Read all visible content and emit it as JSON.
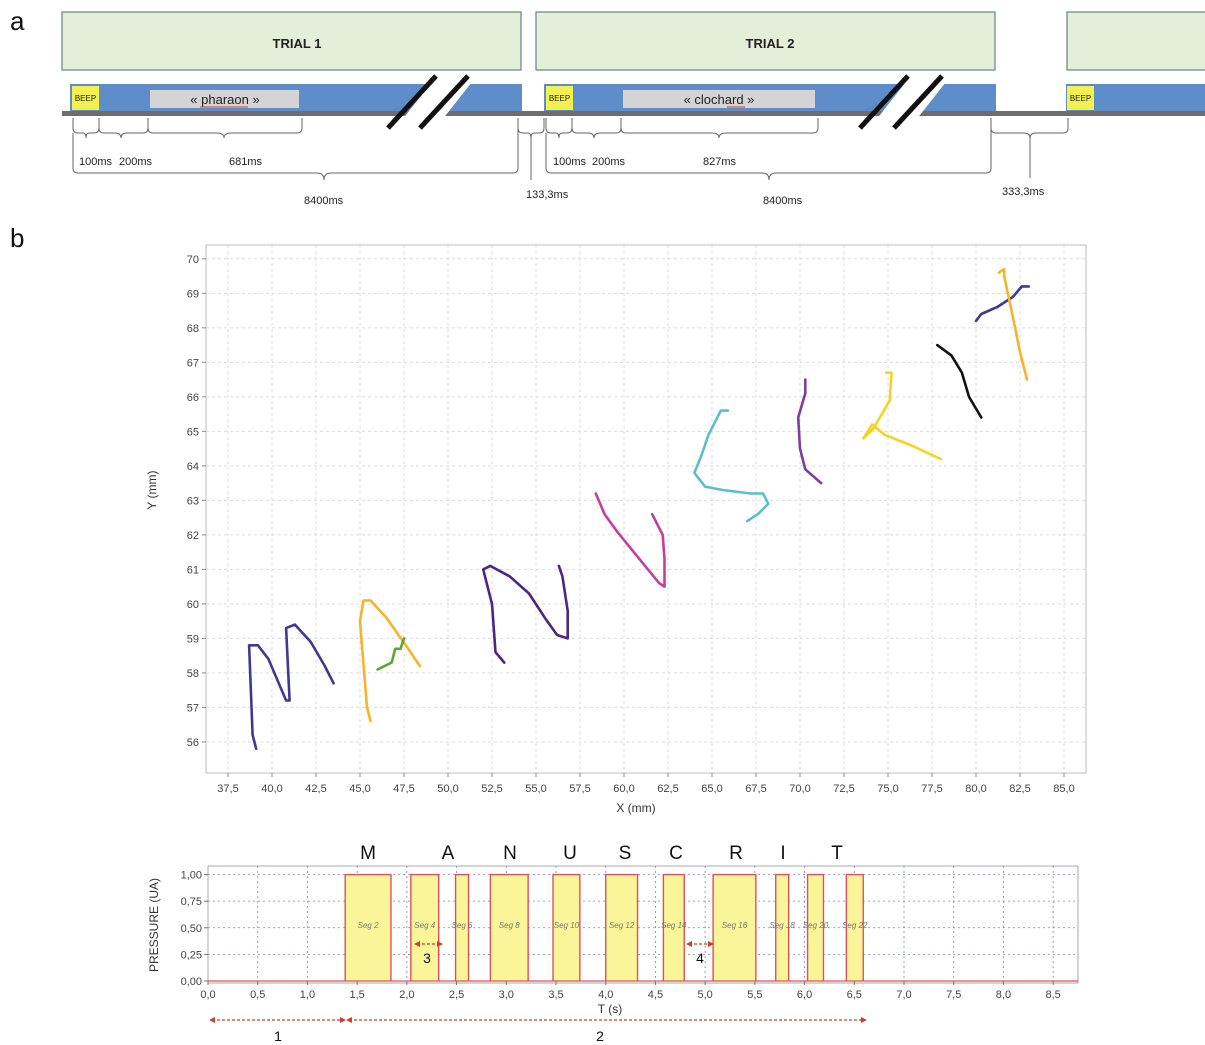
{
  "panel_a": {
    "label": "a",
    "trials": [
      {
        "title": "TRIAL 1",
        "beep": "BEEP",
        "word": "« pharaon »",
        "word_underline": "pharaon",
        "durations": [
          "100ms",
          "200ms",
          "681ms"
        ],
        "total": "8400ms"
      },
      {
        "title": "TRIAL 2",
        "beep": "BEEP",
        "word": "« clochard »",
        "word_underline": "clochard",
        "durations": [
          "100ms",
          "200ms",
          "827ms"
        ],
        "total": "8400ms"
      }
    ],
    "next_beep": "BEEP",
    "gaps": [
      "133,3ms",
      "333,3ms"
    ],
    "colors": {
      "trial_box": "#e3efd8",
      "bar": "#5e8dc9",
      "beep": "#f3f050",
      "word_box": "#d4d4d4",
      "timeline": "#6d6d6d"
    }
  },
  "panel_b": {
    "label": "b",
    "trajectory_chart": {
      "type": "line",
      "xlabel": "X (mm)",
      "ylabel": "Y (mm)",
      "xlim": [
        37.5,
        85.0
      ],
      "ylim": [
        56,
        70
      ],
      "x_ticks": [
        "37,5",
        "40,0",
        "42,5",
        "45,0",
        "47,5",
        "50,0",
        "52,5",
        "55,0",
        "57,5",
        "60,0",
        "62,5",
        "65,0",
        "67,5",
        "70,0",
        "72,5",
        "75,0",
        "77,5",
        "80,0",
        "82,5",
        "85,0"
      ],
      "y_ticks": [
        "56",
        "57",
        "58",
        "59",
        "60",
        "61",
        "62",
        "63",
        "64",
        "65",
        "66",
        "67",
        "68",
        "69",
        "70"
      ],
      "grid": true,
      "series": [
        {
          "color": "#3d3a8f",
          "points": [
            [
              39.1,
              55.8
            ],
            [
              38.9,
              56.2
            ],
            [
              38.7,
              58.8
            ],
            [
              39.2,
              58.8
            ],
            [
              39.8,
              58.4
            ],
            [
              40.8,
              57.2
            ],
            [
              41.0,
              57.2
            ],
            [
              40.8,
              59.3
            ],
            [
              41.3,
              59.4
            ],
            [
              42.2,
              58.9
            ],
            [
              43.0,
              58.2
            ],
            [
              43.5,
              57.7
            ]
          ]
        },
        {
          "color": "#f5b429",
          "points": [
            [
              45.6,
              56.6
            ],
            [
              45.4,
              57.0
            ],
            [
              45.0,
              59.5
            ],
            [
              45.2,
              60.1
            ],
            [
              45.6,
              60.1
            ],
            [
              46.5,
              59.6
            ],
            [
              47.6,
              58.8
            ],
            [
              48.4,
              58.2
            ]
          ]
        },
        {
          "color": "#5aa632",
          "points": [
            [
              46.0,
              58.1
            ],
            [
              46.8,
              58.3
            ],
            [
              47.0,
              58.7
            ],
            [
              47.3,
              58.7
            ],
            [
              47.5,
              59.0
            ]
          ]
        },
        {
          "color": "#4c2683",
          "points": [
            [
              53.2,
              58.3
            ],
            [
              52.7,
              58.6
            ],
            [
              52.5,
              60.0
            ],
            [
              52.0,
              61.0
            ],
            [
              52.4,
              61.1
            ],
            [
              53.5,
              60.8
            ],
            [
              54.6,
              60.3
            ],
            [
              55.5,
              59.6
            ],
            [
              56.2,
              59.1
            ],
            [
              56.8,
              59.0
            ],
            [
              56.8,
              59.8
            ],
            [
              56.5,
              60.8
            ],
            [
              56.3,
              61.1
            ]
          ]
        },
        {
          "color": "#c2409c",
          "points": [
            [
              58.4,
              63.2
            ],
            [
              58.9,
              62.6
            ],
            [
              59.6,
              62.1
            ],
            [
              60.4,
              61.6
            ],
            [
              61.2,
              61.1
            ],
            [
              62.0,
              60.6
            ],
            [
              62.3,
              60.5
            ],
            [
              62.3,
              61.3
            ],
            [
              62.2,
              62.0
            ],
            [
              61.6,
              62.6
            ]
          ]
        },
        {
          "color": "#5bbfcb",
          "points": [
            [
              65.9,
              65.6
            ],
            [
              65.5,
              65.6
            ],
            [
              64.8,
              64.9
            ],
            [
              64.4,
              64.3
            ],
            [
              64.0,
              63.8
            ],
            [
              64.6,
              63.4
            ],
            [
              65.6,
              63.3
            ],
            [
              67.2,
              63.2
            ],
            [
              67.9,
              63.2
            ],
            [
              68.2,
              62.9
            ],
            [
              67.6,
              62.6
            ],
            [
              67.0,
              62.4
            ]
          ]
        },
        {
          "color": "#7d3da3",
          "points": [
            [
              70.3,
              66.5
            ],
            [
              70.3,
              66.1
            ],
            [
              69.9,
              65.4
            ],
            [
              70.0,
              64.5
            ],
            [
              70.3,
              63.9
            ],
            [
              71.2,
              63.5
            ]
          ]
        },
        {
          "color": "#f5d41f",
          "points": [
            [
              74.9,
              66.7
            ],
            [
              75.2,
              66.7
            ],
            [
              75.1,
              65.9
            ],
            [
              74.2,
              65.1
            ],
            [
              73.6,
              64.8
            ],
            [
              74.1,
              65.2
            ],
            [
              74.8,
              64.9
            ],
            [
              76.3,
              64.6
            ],
            [
              78.0,
              64.2
            ]
          ]
        },
        {
          "color": "#111111",
          "points": [
            [
              77.8,
              67.5
            ],
            [
              78.6,
              67.2
            ],
            [
              79.2,
              66.7
            ],
            [
              79.6,
              66.0
            ],
            [
              80.3,
              65.4
            ]
          ]
        },
        {
          "color": "#3d3a8f",
          "points": [
            [
              80.0,
              68.2
            ],
            [
              80.3,
              68.4
            ],
            [
              81.2,
              68.6
            ],
            [
              82.1,
              68.9
            ],
            [
              82.6,
              69.2
            ],
            [
              83.0,
              69.2
            ]
          ]
        },
        {
          "color": "#f5b429",
          "points": [
            [
              81.3,
              69.6
            ],
            [
              81.6,
              69.7
            ],
            [
              81.6,
              69.5
            ],
            [
              82.1,
              68.3
            ],
            [
              82.5,
              67.3
            ],
            [
              82.9,
              66.5
            ]
          ]
        }
      ]
    },
    "pressure_chart": {
      "type": "area",
      "xlabel": "T (s)",
      "ylabel": "PRESSURE (UA)",
      "xlim": [
        0.0,
        8.75
      ],
      "ylim": [
        0,
        1.08
      ],
      "x_ticks": [
        "0,0",
        "0,5",
        "1,0",
        "1,5",
        "2,0",
        "2,5",
        "3,0",
        "3,5",
        "4,0",
        "4,5",
        "5,0",
        "5,5",
        "6,0",
        "6,5",
        "7,0",
        "7,5",
        "8,0",
        "8,5"
      ],
      "y_ticks": [
        "0,00",
        "0,25",
        "0,50",
        "0,75",
        "1,00"
      ],
      "segments": [
        {
          "label": "Seg 2",
          "start": 1.38,
          "end": 1.84,
          "value": 1.0
        },
        {
          "label": "Seg 4",
          "start": 2.04,
          "end": 2.32,
          "value": 1.0
        },
        {
          "label": "Seg 6",
          "start": 2.49,
          "end": 2.62,
          "value": 1.0
        },
        {
          "label": "Seg 8",
          "start": 2.84,
          "end": 3.22,
          "value": 1.0
        },
        {
          "label": "Seg 10",
          "start": 3.47,
          "end": 3.74,
          "value": 1.0
        },
        {
          "label": "Seg 12",
          "start": 4.0,
          "end": 4.32,
          "value": 1.0
        },
        {
          "label": "Seg 14",
          "start": 4.58,
          "end": 4.79,
          "value": 1.0
        },
        {
          "label": "Seg 16",
          "start": 5.08,
          "end": 5.51,
          "value": 1.0
        },
        {
          "label": "Seg 18",
          "start": 5.71,
          "end": 5.84,
          "value": 1.0
        },
        {
          "label": "Seg 20",
          "start": 6.03,
          "end": 6.19,
          "value": 1.0
        },
        {
          "label": "Seg 22",
          "start": 6.42,
          "end": 6.59,
          "value": 1.0
        }
      ],
      "letters": [
        "M",
        "A",
        "N",
        "U",
        "S",
        "C",
        "R",
        "I",
        "T"
      ],
      "gap_markers": [
        "3",
        "4"
      ],
      "ranges": [
        "1",
        "2"
      ],
      "colors": {
        "fill": "#fbf59a",
        "edge": "#e0505a",
        "grid": "#8080d0"
      }
    }
  }
}
